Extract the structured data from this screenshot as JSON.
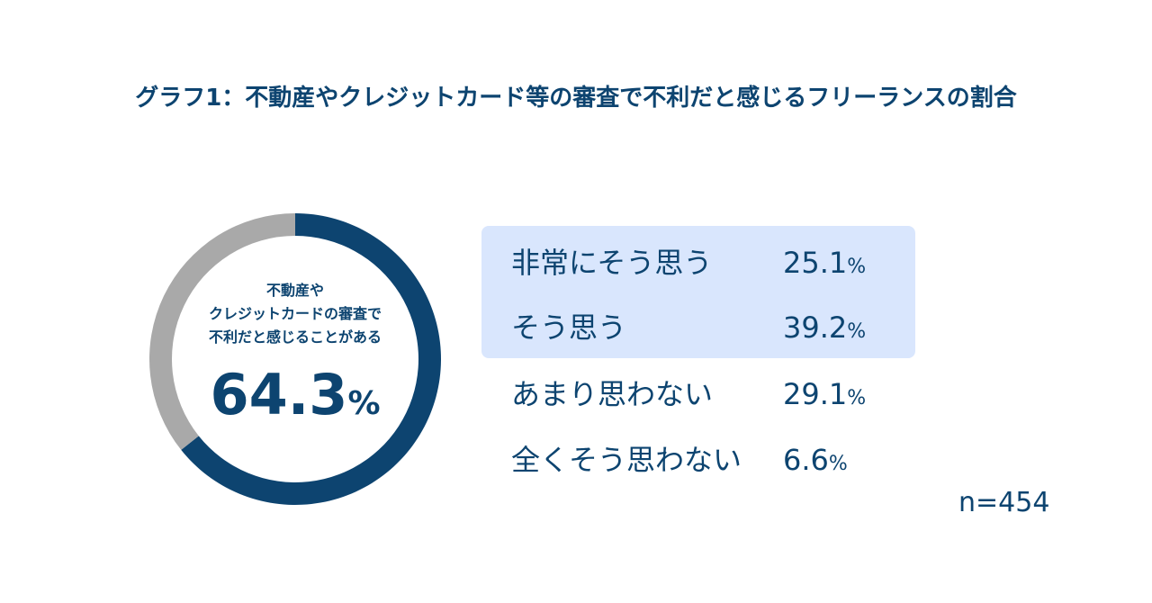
{
  "title": "グラフ1：不動産やクレジットカード等の審査で不利だと感じるフリーランスの割合",
  "colors": {
    "primary": "#0d4470",
    "remainder": "#a9a9a9",
    "highlight": "#d9e6fd"
  },
  "donut": {
    "caption_lines": [
      "不動産や",
      "クレジットカードの審査で",
      "不利だと感じることがある"
    ],
    "value": "64.3",
    "unit": "%"
  },
  "chart_data": {
    "type": "pie",
    "title": "グラフ1：不動産やクレジットカード等の審査で不利だと感じるフリーランスの割合",
    "categories": [
      "非常にそう思う",
      "そう思う",
      "あまり思わない",
      "全くそう思わない"
    ],
    "values": [
      25.1,
      39.2,
      29.1,
      6.6
    ],
    "highlighted_categories": [
      "非常にそう思う",
      "そう思う"
    ],
    "donut_segments": [
      {
        "label": "不動産やクレジットカードの審査で不利だと感じることがある",
        "value": 64.3
      },
      {
        "label": "",
        "value": 35.7
      }
    ],
    "sample_size": "n=454"
  },
  "legend": [
    {
      "label": "非常にそう思う",
      "value": "25.1",
      "unit": "%"
    },
    {
      "label": "そう思う",
      "value": "39.2",
      "unit": "%"
    },
    {
      "label": "あまり思わない",
      "value": "29.1",
      "unit": "%"
    },
    {
      "label": "全くそう思わない",
      "value": "6.6",
      "unit": "%"
    }
  ],
  "sample": "n=454"
}
